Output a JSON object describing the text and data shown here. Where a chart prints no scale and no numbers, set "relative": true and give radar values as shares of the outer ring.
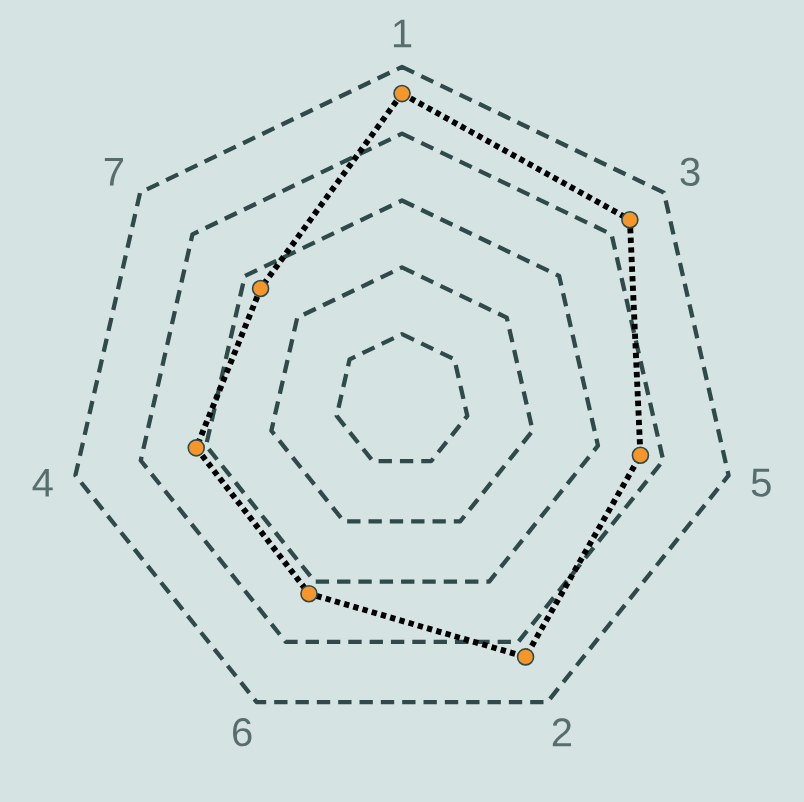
{
  "chart_data": {
    "type": "radar",
    "relative": true,
    "categories": [
      "1",
      "3",
      "5",
      "2",
      "6",
      "4",
      "7"
    ],
    "series": [
      {
        "color": "#000000",
        "colors": [
          "#f5962a",
          "#f5962a",
          "#f5962a",
          "#f5962a",
          "#f5962a",
          "#f5962a",
          "#f5962a"
        ],
        "values": [
          0.92,
          0.87,
          0.73,
          0.85,
          0.64,
          0.63,
          0.54
        ]
      }
    ],
    "grid": true,
    "marker": "circle",
    "line_style": "dotted"
  }
}
